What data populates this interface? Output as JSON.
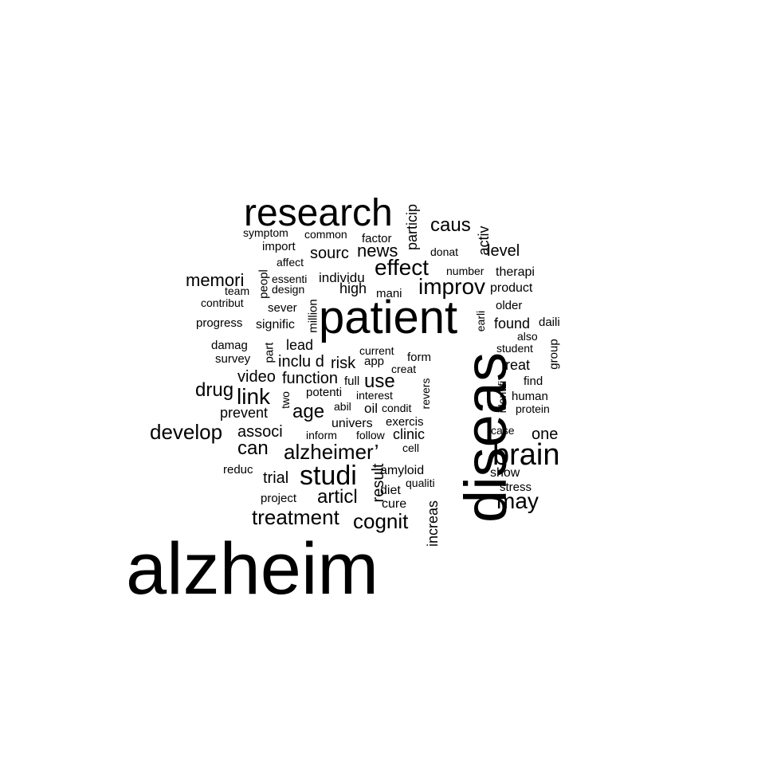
{
  "wordcloud": {
    "words": [
      "alzheim",
      "diseas",
      "patient",
      "research",
      "brain",
      "studi",
      "alzheimer’",
      "treatment",
      "cognit",
      "may",
      "develop",
      "link",
      "improv",
      "effect",
      "caus",
      "memori",
      "news",
      "sourc",
      "level",
      "articl",
      "age",
      "drug",
      "use",
      "can",
      "associ",
      "inclu d",
      "result",
      "increas",
      "one",
      "risk",
      "function",
      "video",
      "prevent",
      "trial",
      "treat",
      "found",
      "high",
      "particip",
      "activ",
      "individu",
      "product",
      "therapi",
      "lead",
      "signific",
      "progress",
      "million",
      "peopl",
      "essenti",
      "design",
      "team",
      "contribut",
      "sever",
      "import",
      "affect",
      "symptom",
      "common",
      "factor",
      "donat",
      "number",
      "mani",
      "older",
      "earli",
      "daili",
      "also",
      "student",
      "group",
      "current",
      "app",
      "form",
      "creat",
      "damag",
      "part",
      "survey",
      "full",
      "potenti",
      "interest",
      "revers",
      "identifi",
      "find",
      "human",
      "protein",
      "two",
      "abil",
      "oil",
      "condit",
      "exercis",
      "univers",
      "inform",
      "follow",
      "clinic",
      "case",
      "cell",
      "reduc",
      "amyloid",
      "qualiti",
      "show",
      "stress",
      "diet",
      "project",
      "cure"
    ]
  }
}
